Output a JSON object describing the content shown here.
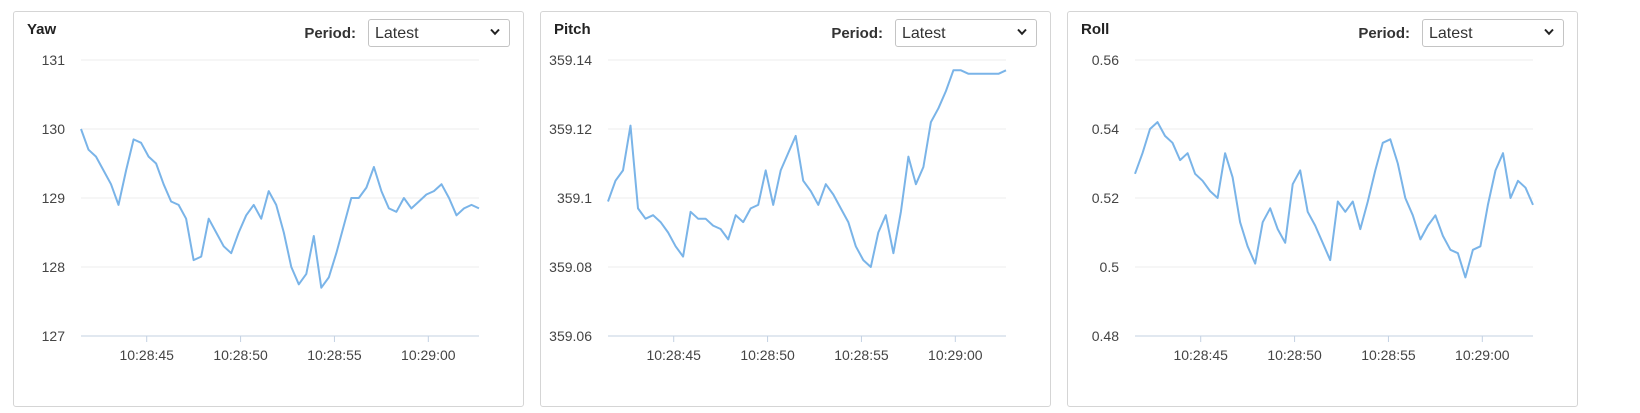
{
  "colors": {
    "line": "#7ab4e8",
    "grid": "#ececec",
    "axis": "#c3d1e2"
  },
  "chart_data": [
    {
      "type": "line",
      "title": "Yaw",
      "period": {
        "label": "Period:",
        "selected": "Latest"
      },
      "yticks": [
        127,
        128,
        129,
        130,
        131
      ],
      "ylim": [
        127,
        131
      ],
      "xticks": [
        "10:28:45",
        "10:28:50",
        "10:28:55",
        "10:29:00"
      ],
      "xtick_values": [
        44.6,
        49.6,
        54.6,
        59.6
      ],
      "xlim": [
        41.1,
        62.3
      ],
      "grid": true,
      "x": [
        41.1,
        41.5,
        41.9,
        42.3,
        42.7,
        43.1,
        43.5,
        43.9,
        44.3,
        44.7,
        45.1,
        45.5,
        45.9,
        46.3,
        46.7,
        47.1,
        47.5,
        47.9,
        48.3,
        48.7,
        49.1,
        49.5,
        49.9,
        50.3,
        50.7,
        51.1,
        51.5,
        51.9,
        52.3,
        52.7,
        53.1,
        53.5,
        53.9,
        54.3,
        54.7,
        55.1,
        55.5,
        55.9,
        56.3,
        56.7,
        57.1,
        57.5,
        57.9,
        58.3,
        58.7,
        59.1,
        59.5,
        59.9,
        60.3,
        60.7,
        61.1,
        61.5,
        61.9,
        62.3
      ],
      "y": [
        130.0,
        129.7,
        129.6,
        129.4,
        129.2,
        128.9,
        129.4,
        129.85,
        129.8,
        129.6,
        129.5,
        129.2,
        128.95,
        128.9,
        128.7,
        128.1,
        128.15,
        128.7,
        128.5,
        128.3,
        128.2,
        128.5,
        128.75,
        128.9,
        128.7,
        129.1,
        128.9,
        128.5,
        128.0,
        127.75,
        127.9,
        128.45,
        127.7,
        127.85,
        128.2,
        128.6,
        129.0,
        129.0,
        129.15,
        129.45,
        129.1,
        128.85,
        128.8,
        129.0,
        128.85,
        128.95,
        129.05,
        129.1,
        129.2,
        129.0,
        128.75,
        128.85,
        128.9,
        128.85
      ],
      "series": [
        {
          "values_ref": "y"
        }
      ]
    },
    {
      "type": "line",
      "title": "Pitch",
      "period": {
        "label": "Period:",
        "selected": "Latest"
      },
      "yticks": [
        359.06,
        359.08,
        359.1,
        359.12,
        359.14
      ],
      "ylim": [
        359.06,
        359.14
      ],
      "xticks": [
        "10:28:45",
        "10:28:50",
        "10:28:55",
        "10:29:00"
      ],
      "xtick_values": [
        44.6,
        49.6,
        54.6,
        59.6
      ],
      "xlim": [
        41.1,
        62.3
      ],
      "grid": true,
      "x": [
        41.1,
        41.5,
        41.9,
        42.3,
        42.7,
        43.1,
        43.5,
        43.9,
        44.3,
        44.7,
        45.1,
        45.5,
        45.9,
        46.3,
        46.7,
        47.1,
        47.5,
        47.9,
        48.3,
        48.7,
        49.1,
        49.5,
        49.9,
        50.3,
        50.7,
        51.1,
        51.5,
        51.9,
        52.3,
        52.7,
        53.1,
        53.5,
        53.9,
        54.3,
        54.7,
        55.1,
        55.5,
        55.9,
        56.3,
        56.7,
        57.1,
        57.5,
        57.9,
        58.3,
        58.7,
        59.1,
        59.5,
        59.9,
        60.3,
        60.7,
        61.1,
        61.5,
        61.9,
        62.3
      ],
      "y": [
        359.099,
        359.105,
        359.108,
        359.121,
        359.097,
        359.094,
        359.095,
        359.093,
        359.09,
        359.086,
        359.083,
        359.096,
        359.094,
        359.094,
        359.092,
        359.091,
        359.088,
        359.095,
        359.093,
        359.097,
        359.098,
        359.108,
        359.098,
        359.108,
        359.113,
        359.118,
        359.105,
        359.102,
        359.098,
        359.104,
        359.101,
        359.097,
        359.093,
        359.086,
        359.082,
        359.08,
        359.09,
        359.095,
        359.084,
        359.096,
        359.112,
        359.104,
        359.109,
        359.122,
        359.126,
        359.131,
        359.137,
        359.137,
        359.136,
        359.136,
        359.136,
        359.136,
        359.136,
        359.137
      ],
      "series": [
        {
          "values_ref": "y"
        }
      ]
    },
    {
      "type": "line",
      "title": "Roll",
      "period": {
        "label": "Period:",
        "selected": "Latest"
      },
      "yticks": [
        0.48,
        0.5,
        0.52,
        0.54,
        0.56
      ],
      "yticks_text": [
        "0.48",
        "0.5",
        "0.52",
        "0.54",
        "0.56"
      ],
      "ylim": [
        0.48,
        0.56
      ],
      "xticks": [
        "10:28:45",
        "10:28:50",
        "10:28:55",
        "10:29:00"
      ],
      "xtick_values": [
        44.6,
        49.6,
        54.6,
        59.6
      ],
      "xlim": [
        41.1,
        62.3
      ],
      "grid": true,
      "x": [
        41.1,
        41.5,
        41.9,
        42.3,
        42.7,
        43.1,
        43.5,
        43.9,
        44.3,
        44.7,
        45.1,
        45.5,
        45.9,
        46.3,
        46.7,
        47.1,
        47.5,
        47.9,
        48.3,
        48.7,
        49.1,
        49.5,
        49.9,
        50.3,
        50.7,
        51.1,
        51.5,
        51.9,
        52.3,
        52.7,
        53.1,
        53.5,
        53.9,
        54.3,
        54.7,
        55.1,
        55.5,
        55.9,
        56.3,
        56.7,
        57.1,
        57.5,
        57.9,
        58.3,
        58.7,
        59.1,
        59.5,
        59.9,
        60.3,
        60.7,
        61.1,
        61.5,
        61.9,
        62.3
      ],
      "y": [
        0.527,
        0.533,
        0.54,
        0.542,
        0.538,
        0.536,
        0.531,
        0.533,
        0.527,
        0.525,
        0.522,
        0.52,
        0.533,
        0.526,
        0.513,
        0.506,
        0.501,
        0.513,
        0.517,
        0.511,
        0.507,
        0.524,
        0.528,
        0.516,
        0.512,
        0.507,
        0.502,
        0.519,
        0.516,
        0.519,
        0.511,
        0.519,
        0.528,
        0.536,
        0.537,
        0.53,
        0.52,
        0.515,
        0.508,
        0.512,
        0.515,
        0.509,
        0.505,
        0.504,
        0.497,
        0.505,
        0.506,
        0.518,
        0.528,
        0.533,
        0.52,
        0.525,
        0.523,
        0.518
      ],
      "series": [
        {
          "values_ref": "y"
        }
      ]
    }
  ]
}
